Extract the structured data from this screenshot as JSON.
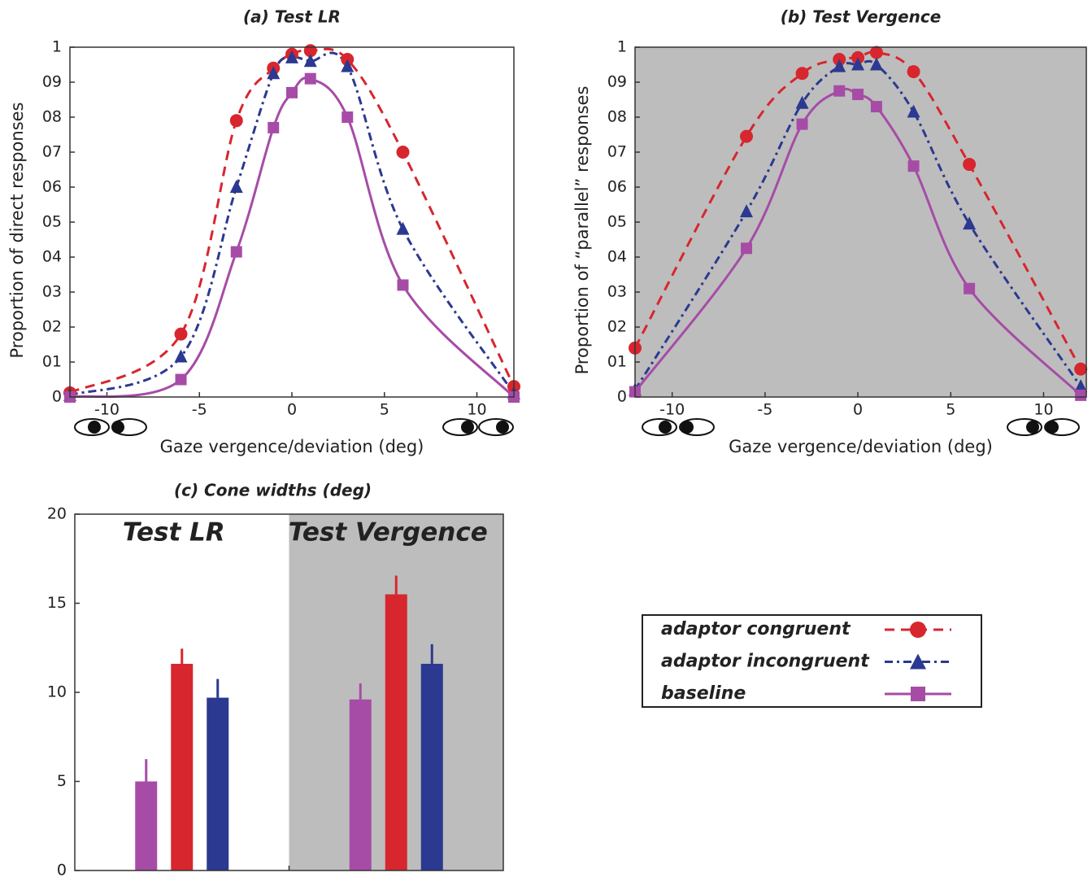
{
  "chart_data": [
    {
      "type": "line",
      "title": "(a) Test LR",
      "xlabel": "Gaze vergence/deviation (deg)",
      "ylabel": "Proportion of direct responses",
      "x": [
        -12,
        -6,
        -3,
        -1,
        0,
        1,
        3,
        6,
        12
      ],
      "xlim": [
        -12,
        12
      ],
      "xticks": [
        -10,
        -5,
        0,
        5,
        10
      ],
      "ylim": [
        0,
        1
      ],
      "yticks": [
        0,
        {
          "value": 0.1,
          "label": "01"
        },
        {
          "value": 0.2,
          "label": "02"
        },
        {
          "value": 0.3,
          "label": "03"
        },
        {
          "value": 0.4,
          "label": "04"
        },
        {
          "value": 0.5,
          "label": "05"
        },
        {
          "value": 0.6,
          "label": "06"
        },
        {
          "value": 0.7,
          "label": "07"
        },
        {
          "value": 0.8,
          "label": "08"
        },
        {
          "value": 0.9,
          "label": "09"
        },
        1
      ],
      "series": [
        {
          "name": "adaptor congruent",
          "color": "#d7262e",
          "marker": "circle",
          "dash": "dashed",
          "values": [
            0.012,
            0.18,
            0.79,
            0.94,
            0.98,
            0.99,
            0.965,
            0.7,
            0.03
          ]
        },
        {
          "name": "adaptor incongruent",
          "color": "#2b3990",
          "marker": "triangle",
          "dash": "dashdot",
          "values": [
            0.005,
            0.115,
            0.6,
            0.925,
            0.97,
            0.96,
            0.945,
            0.48,
            0.01
          ]
        },
        {
          "name": "baseline",
          "color": "#a64ca6",
          "marker": "square",
          "dash": "solid",
          "values": [
            0.0,
            0.05,
            0.415,
            0.77,
            0.87,
            0.91,
            0.8,
            0.32,
            0.0
          ]
        }
      ]
    },
    {
      "type": "line",
      "title": "(b) Test Vergence",
      "xlabel": "Gaze vergence/deviation (deg)",
      "ylabel": "Proportion of “parallel” responses",
      "background": "#bdbdbd",
      "x": [
        -12,
        -6,
        -3,
        -1,
        0,
        1,
        3,
        6,
        12
      ],
      "xlim": [
        -12,
        12.3
      ],
      "xticks": [
        -10,
        -5,
        0,
        5,
        10
      ],
      "ylim": [
        0,
        1
      ],
      "yticks": [
        0,
        {
          "value": 0.1,
          "label": "01"
        },
        {
          "value": 0.2,
          "label": "02"
        },
        {
          "value": 0.3,
          "label": "03"
        },
        {
          "value": 0.4,
          "label": "04"
        },
        {
          "value": 0.5,
          "label": "05"
        },
        {
          "value": 0.6,
          "label": "06"
        },
        {
          "value": 0.7,
          "label": "07"
        },
        {
          "value": 0.8,
          "label": "08"
        },
        {
          "value": 0.9,
          "label": "09"
        },
        1
      ],
      "series": [
        {
          "color": "#d7262e",
          "marker": "circle",
          "dash": "dashed",
          "values": [
            0.14,
            0.745,
            0.925,
            0.965,
            0.97,
            0.985,
            0.93,
            0.665,
            0.08
          ]
        },
        {
          "color": "#2b3990",
          "marker": "triangle",
          "dash": "dashdot",
          "values": [
            0.02,
            0.53,
            0.84,
            0.945,
            0.95,
            0.95,
            0.815,
            0.495,
            0.03
          ]
        },
        {
          "color": "#a64ca6",
          "marker": "square",
          "dash": "solid",
          "values": [
            0.015,
            0.425,
            0.78,
            0.875,
            0.865,
            0.83,
            0.66,
            0.31,
            0.005
          ]
        }
      ]
    },
    {
      "type": "bar",
      "title": "(c) Cone widths (deg)",
      "categories": [
        "Test LR",
        "Test Vergence"
      ],
      "band_colors": [
        "#ffffff",
        "#bdbdbd"
      ],
      "ylim": [
        0,
        20
      ],
      "yticks": [
        0,
        5,
        10,
        15,
        20
      ],
      "series": [
        {
          "color": "#a64ca6",
          "values": [
            5.0,
            9.6
          ],
          "errors": [
            1.25,
            0.9
          ]
        },
        {
          "color": "#d7262e",
          "values": [
            11.6,
            15.5
          ],
          "errors": [
            0.85,
            1.05
          ]
        },
        {
          "color": "#2b3990",
          "values": [
            9.7,
            11.6
          ],
          "errors": [
            1.05,
            1.1
          ]
        }
      ]
    }
  ]
}
